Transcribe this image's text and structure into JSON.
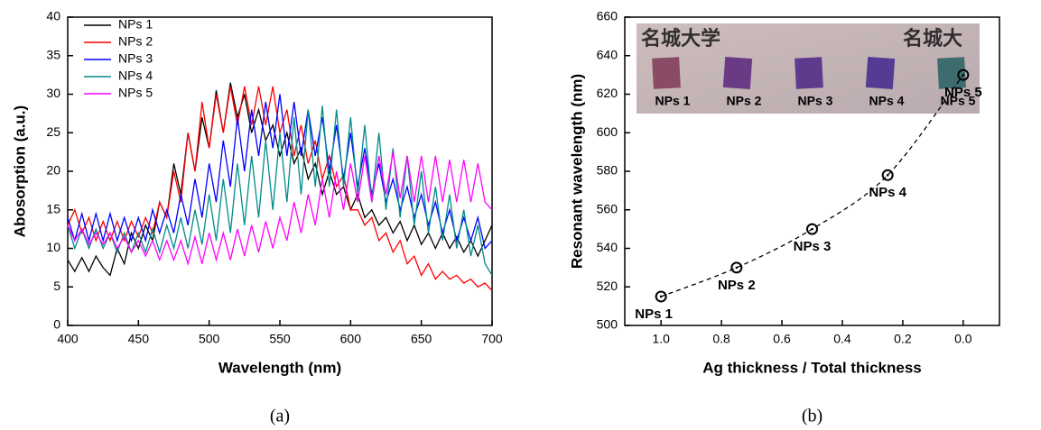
{
  "chart_data": [
    {
      "type": "line",
      "caption": "(a)",
      "x_label": "Wavelength (nm)",
      "y_label": "Abosorption (a.u.)",
      "x": [
        400,
        405,
        410,
        415,
        420,
        425,
        430,
        435,
        440,
        445,
        450,
        455,
        460,
        465,
        470,
        475,
        480,
        485,
        490,
        495,
        500,
        505,
        510,
        515,
        520,
        525,
        530,
        535,
        540,
        545,
        550,
        555,
        560,
        565,
        570,
        575,
        580,
        585,
        590,
        595,
        600,
        605,
        610,
        615,
        620,
        625,
        630,
        635,
        640,
        645,
        650,
        655,
        660,
        665,
        670,
        675,
        680,
        685,
        690,
        695,
        700
      ],
      "series": [
        {
          "name": "NPs 1",
          "color": "#000000",
          "values": [
            8.5,
            7,
            8.8,
            7,
            9,
            7.5,
            6.5,
            10,
            8,
            12,
            10,
            13,
            11,
            16,
            14,
            21,
            17,
            25,
            20,
            27,
            23,
            30.5,
            25,
            31.5,
            27,
            30,
            25,
            28,
            24,
            26,
            22,
            25,
            21,
            23,
            19,
            21,
            17,
            20,
            17,
            18,
            15,
            17,
            14,
            15,
            13,
            14,
            12,
            13.5,
            11,
            13,
            10.5,
            12,
            10,
            12,
            10,
            11.5,
            9.5,
            11,
            9,
            11,
            13
          ]
        },
        {
          "name": "NPs 2",
          "color": "#ff0000",
          "values": [
            13,
            15,
            12,
            14,
            11,
            13.5,
            11,
            13.5,
            11,
            13.5,
            11.5,
            14,
            12,
            16,
            14,
            20,
            16,
            25,
            20,
            29,
            23,
            30,
            25,
            31,
            26,
            31,
            26,
            31,
            26,
            31,
            25,
            28,
            22,
            26,
            21,
            24,
            19,
            22,
            18,
            19.5,
            15,
            15,
            13,
            14,
            11,
            12,
            9.5,
            11,
            8,
            9,
            6.5,
            8,
            6,
            7,
            6,
            6.5,
            5.5,
            6,
            5,
            5.5,
            4.5
          ]
        },
        {
          "name": "NPs 3",
          "color": "#0000ff",
          "values": [
            14,
            11,
            14.5,
            11,
            14.5,
            11,
            14.5,
            11,
            14,
            11,
            14,
            11,
            15,
            12,
            15,
            12,
            17,
            13,
            19,
            14,
            21,
            16,
            24,
            18,
            27,
            20,
            28,
            22,
            29,
            23,
            30,
            22,
            29,
            22,
            28,
            22,
            27,
            20,
            26,
            19,
            25,
            18,
            23,
            17,
            21,
            16,
            19,
            15,
            18,
            14,
            17,
            13,
            16,
            12,
            15,
            11,
            14,
            11,
            14,
            10,
            11
          ]
        },
        {
          "name": "NPs 4",
          "color": "#008b8b",
          "values": [
            13,
            10,
            12.5,
            10,
            12.5,
            10,
            12,
            9.5,
            12,
            9.5,
            12,
            9.5,
            12.5,
            9.5,
            13,
            10,
            14,
            10,
            15,
            10.5,
            17,
            11,
            19,
            12,
            21,
            13,
            22,
            14,
            24,
            15,
            25,
            16,
            27,
            17,
            28,
            18,
            28.5,
            18,
            28,
            18,
            27,
            17,
            26,
            16,
            25,
            15,
            23,
            14,
            22,
            13,
            20,
            12,
            18,
            11,
            17,
            10,
            15,
            9,
            13,
            8,
            6.5
          ]
        },
        {
          "name": "NPs 5",
          "color": "#ff00ff",
          "values": [
            13,
            11,
            12.5,
            10.5,
            12,
            10.5,
            12,
            10,
            11.5,
            9.5,
            11,
            9,
            11,
            8.5,
            11,
            8.5,
            11,
            8,
            11.5,
            8,
            12,
            8.5,
            12,
            8.5,
            12.5,
            9,
            13,
            9.5,
            13.5,
            10,
            14,
            11,
            16,
            12,
            17,
            13,
            19,
            14,
            20,
            15,
            21,
            16,
            22,
            16,
            22,
            17,
            22.5,
            16.5,
            22,
            16,
            22,
            16,
            22,
            16,
            21.5,
            16,
            21.5,
            16,
            21,
            16,
            15
          ]
        }
      ],
      "xlim": [
        400,
        700
      ],
      "xticks": [
        400,
        450,
        500,
        550,
        600,
        650,
        700
      ],
      "ylim": [
        0,
        40
      ],
      "yticks": [
        0,
        5,
        10,
        15,
        20,
        25,
        30,
        35,
        40
      ]
    },
    {
      "type": "scatter",
      "caption": "(b)",
      "x_label": "Ag thickness / Total thickness",
      "y_label": "Resonant wavelength (nm)",
      "x": [
        1.0,
        0.75,
        0.5,
        0.25,
        0.0
      ],
      "values": [
        515,
        530,
        550,
        578,
        630
      ],
      "point_labels": [
        "NPs 1",
        "NPs 2",
        "NPs 3",
        "NPs 4",
        "NPs 5"
      ],
      "label_colors": [
        "#000000",
        "#ff0000",
        "#0000ff",
        "#00a550",
        "#ff00ff"
      ],
      "color": "#000000",
      "xlim": [
        1.12,
        -0.12
      ],
      "xticks": [
        {
          "value": 1.0,
          "label": "1.0"
        },
        0.8,
        0.6,
        0.4,
        0.2,
        {
          "value": 0.0,
          "label": "0.0"
        }
      ],
      "ylim": [
        500,
        660
      ],
      "yticks": [
        500,
        520,
        540,
        560,
        580,
        600,
        620,
        640,
        660
      ],
      "inset": {
        "texts": [
          "名城大学",
          "名城大"
        ],
        "labels": [
          "NPs 1",
          "NPs 2",
          "NPs 3",
          "NPs 4",
          "NPs 5"
        ],
        "label_colors": [
          "#000000",
          "#ff0000",
          "#0000ff",
          "#00a550",
          "#ff00ff"
        ],
        "sample_colors": [
          "#8a4b66",
          "#6b3a84",
          "#5e3b8c",
          "#563a93",
          "#3d6b6e"
        ]
      }
    }
  ]
}
